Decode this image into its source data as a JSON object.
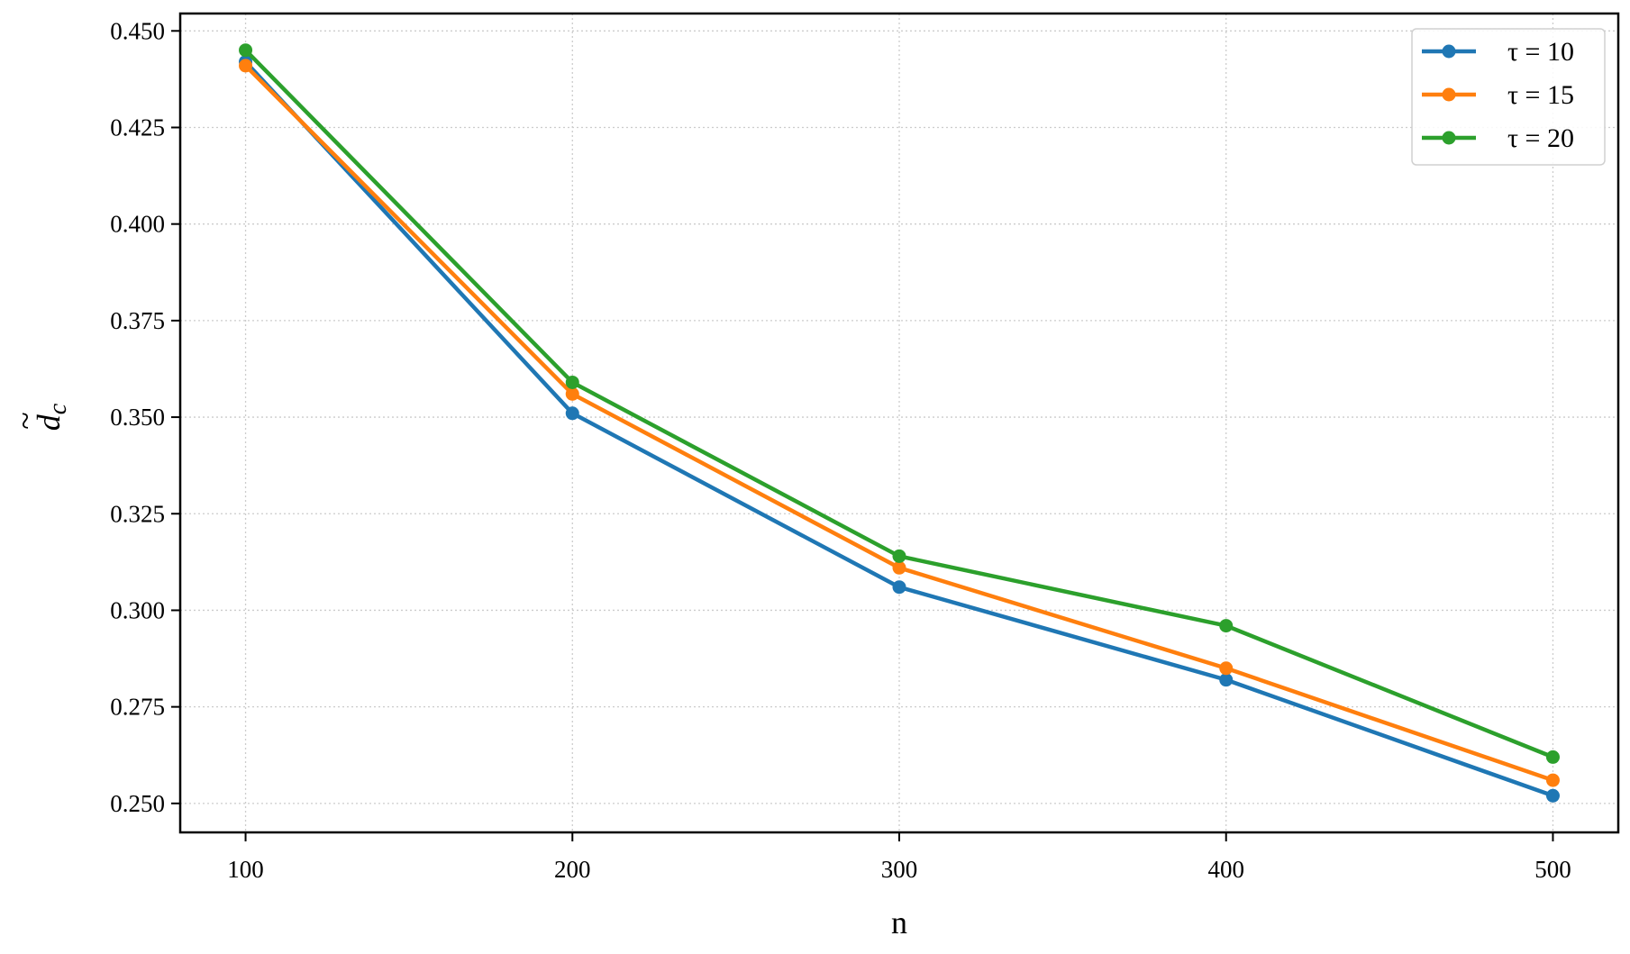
{
  "chart_data": {
    "type": "line",
    "title": "",
    "xlabel": "n",
    "ylabel": "d̃c",
    "ylabel_base": "d",
    "ylabel_subscript": "c",
    "x": [
      100,
      200,
      300,
      400,
      500
    ],
    "xticks": [
      "100",
      "200",
      "300",
      "400",
      "500"
    ],
    "xlim": [
      80,
      520
    ],
    "yticks": [
      "0.250",
      "0.275",
      "0.300",
      "0.325",
      "0.350",
      "0.375",
      "0.400",
      "0.425",
      "0.450"
    ],
    "ylim": [
      0.2425,
      0.4545
    ],
    "grid": true,
    "legend_position": "top-right",
    "series": [
      {
        "name": "τ = 10",
        "color": "#1f77b4",
        "values": [
          0.442,
          0.351,
          0.306,
          0.282,
          0.252
        ]
      },
      {
        "name": "τ = 15",
        "color": "#ff7f0e",
        "values": [
          0.441,
          0.356,
          0.311,
          0.285,
          0.256
        ]
      },
      {
        "name": "τ = 20",
        "color": "#2ca02c",
        "values": [
          0.445,
          0.359,
          0.314,
          0.296,
          0.262
        ]
      }
    ]
  }
}
